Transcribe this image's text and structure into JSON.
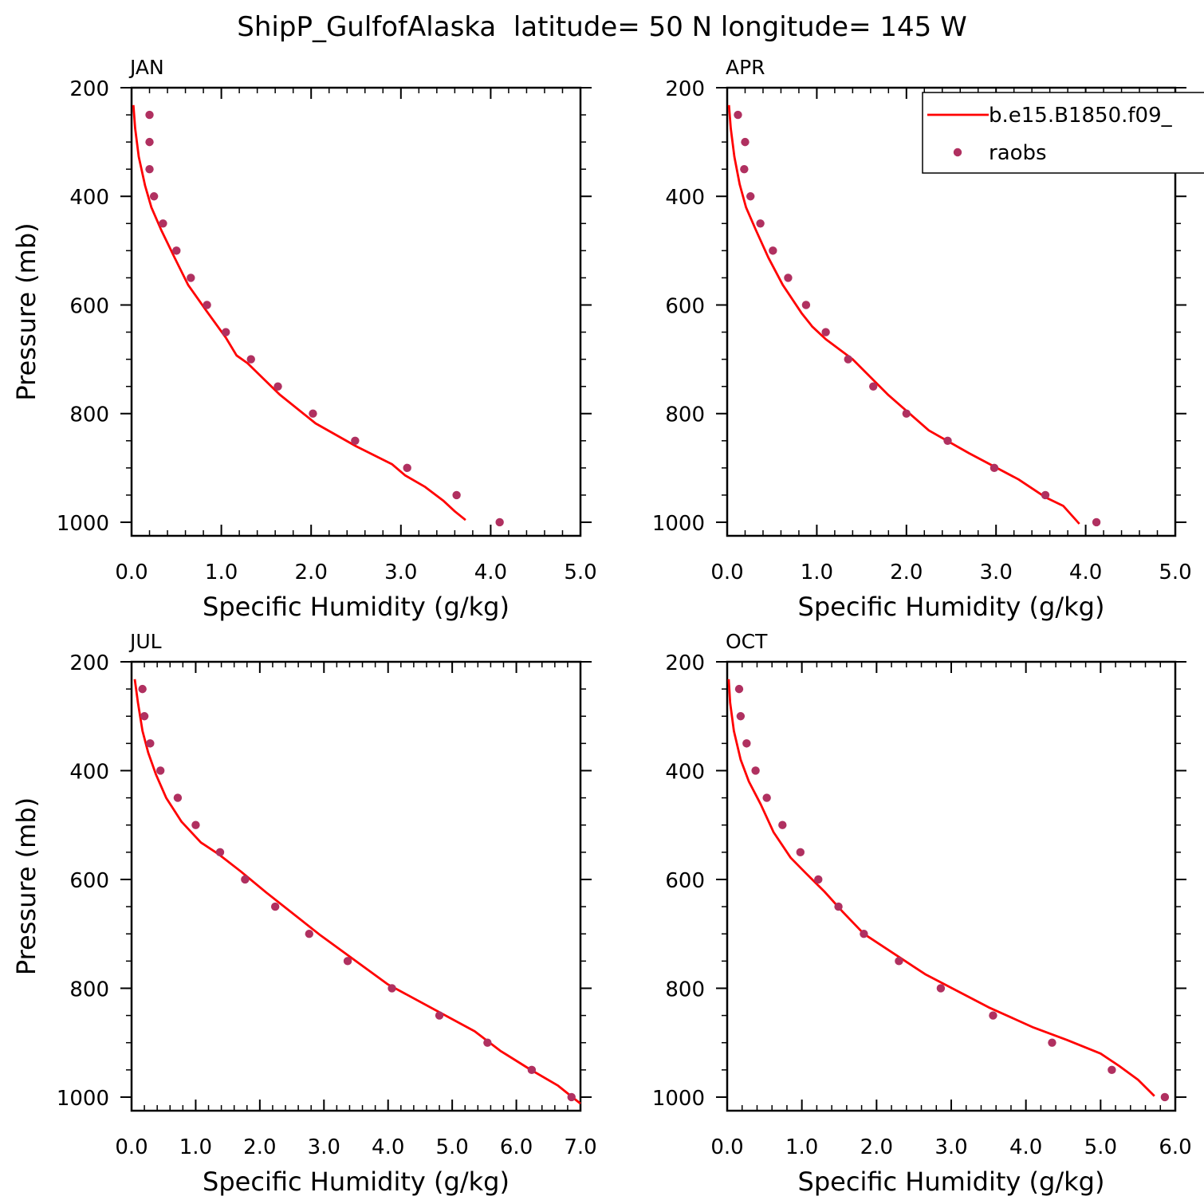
{
  "figure": {
    "title": "ShipP_GulfofAlaska  latitude= 50 N longitude= 145 W"
  },
  "legend": {
    "placement": "top-right of APR panel",
    "entries": [
      {
        "label": "b.e15.B1850.f09_",
        "kind": "line",
        "color": "#ff0000"
      },
      {
        "label": "raobs",
        "kind": "marker",
        "color": "#b03060"
      }
    ]
  },
  "colors": {
    "model_line": "#ff0000",
    "raobs_marker": "#b03060"
  },
  "chart_data": [
    {
      "type": "line",
      "panel_label": "JAN",
      "xlabel": "Specific Humidity (g/kg)",
      "ylabel": "Pressure (mb)",
      "xlim": [
        0,
        5
      ],
      "ylim": [
        200,
        1025
      ],
      "y_inverted": true,
      "xticks": [
        "0.0",
        "1.0",
        "2.0",
        "3.0",
        "4.0",
        "5.0"
      ],
      "yticks": [
        "200",
        "400",
        "600",
        "800",
        "1000"
      ],
      "series": [
        {
          "name": "b.e15.B1850.f09_",
          "kind": "line",
          "x": [
            0.02,
            0.04,
            0.08,
            0.15,
            0.22,
            0.33,
            0.48,
            0.63,
            0.83,
            1.05,
            1.17,
            1.29,
            1.65,
            2.05,
            2.5,
            2.9,
            3.05,
            3.27,
            3.47,
            3.6,
            3.72
          ],
          "y": [
            232,
            275,
            327,
            380,
            420,
            462,
            513,
            563,
            610,
            660,
            693,
            707,
            765,
            818,
            860,
            893,
            914,
            935,
            960,
            980,
            996
          ]
        },
        {
          "name": "raobs",
          "kind": "scatter",
          "x": [
            0.2,
            0.2,
            0.2,
            0.25,
            0.35,
            0.5,
            0.66,
            0.84,
            1.05,
            1.33,
            1.63,
            2.02,
            2.49,
            3.07,
            3.62,
            4.1
          ],
          "y": [
            250,
            300,
            350,
            400,
            450,
            500,
            550,
            600,
            650,
            700,
            750,
            800,
            850,
            900,
            950,
            1000
          ]
        }
      ]
    },
    {
      "type": "line",
      "panel_label": "APR",
      "xlabel": "Specific Humidity (g/kg)",
      "ylabel": "",
      "xlim": [
        0,
        5
      ],
      "ylim": [
        200,
        1025
      ],
      "y_inverted": true,
      "xticks": [
        "0.0",
        "1.0",
        "2.0",
        "3.0",
        "4.0",
        "5.0"
      ],
      "yticks": [
        "200",
        "400",
        "600",
        "800",
        "1000"
      ],
      "series": [
        {
          "name": "b.e15.B1850.f09_",
          "kind": "line",
          "x": [
            0.02,
            0.04,
            0.08,
            0.14,
            0.21,
            0.32,
            0.46,
            0.62,
            0.83,
            0.95,
            1.1,
            1.4,
            1.8,
            2.25,
            2.7,
            3.25,
            3.55,
            3.75,
            3.93
          ],
          "y": [
            232,
            275,
            327,
            378,
            420,
            462,
            513,
            563,
            615,
            640,
            663,
            700,
            766,
            831,
            873,
            921,
            954,
            970,
            1003
          ]
        },
        {
          "name": "raobs",
          "kind": "scatter",
          "x": [
            0.12,
            0.2,
            0.19,
            0.26,
            0.37,
            0.51,
            0.68,
            0.88,
            1.1,
            1.35,
            1.63,
            2.0,
            2.46,
            2.98,
            3.55,
            4.12
          ],
          "y": [
            250,
            300,
            350,
            400,
            450,
            500,
            550,
            600,
            650,
            700,
            750,
            800,
            850,
            900,
            950,
            1000
          ]
        }
      ]
    },
    {
      "type": "line",
      "panel_label": "JUL",
      "xlabel": "Specific Humidity (g/kg)",
      "ylabel": "Pressure (mb)",
      "xlim": [
        0,
        7
      ],
      "ylim": [
        200,
        1025
      ],
      "y_inverted": true,
      "xticks": [
        "0.0",
        "1.0",
        "2.0",
        "3.0",
        "4.0",
        "5.0",
        "6.0",
        "7.0"
      ],
      "yticks": [
        "200",
        "400",
        "600",
        "800",
        "1000"
      ],
      "series": [
        {
          "name": "b.e15.B1850.f09_",
          "kind": "line",
          "x": [
            0.05,
            0.1,
            0.17,
            0.26,
            0.38,
            0.54,
            0.78,
            1.08,
            1.35,
            1.7,
            2.1,
            2.95,
            4.0,
            5.35,
            5.75,
            6.2,
            6.65,
            7.0
          ],
          "y": [
            232,
            275,
            327,
            367,
            407,
            450,
            494,
            532,
            553,
            585,
            624,
            703,
            793,
            879,
            915,
            948,
            979,
            1012
          ]
        },
        {
          "name": "raobs",
          "kind": "scatter",
          "x": [
            0.17,
            0.2,
            0.29,
            0.45,
            0.72,
            1.0,
            1.38,
            1.77,
            2.24,
            2.77,
            3.37,
            4.06,
            4.8,
            5.55,
            6.24,
            6.86
          ],
          "y": [
            250,
            300,
            350,
            400,
            450,
            500,
            550,
            600,
            650,
            700,
            750,
            800,
            850,
            900,
            950,
            1000
          ]
        }
      ]
    },
    {
      "type": "line",
      "panel_label": "OCT",
      "xlabel": "Specific Humidity (g/kg)",
      "ylabel": "",
      "xlim": [
        0,
        6
      ],
      "ylim": [
        200,
        1025
      ],
      "y_inverted": true,
      "xticks": [
        "0.0",
        "1.0",
        "2.0",
        "3.0",
        "4.0",
        "5.0",
        "6.0"
      ],
      "yticks": [
        "200",
        "400",
        "600",
        "800",
        "1000"
      ],
      "series": [
        {
          "name": "b.e15.B1850.f09_",
          "kind": "line",
          "x": [
            0.02,
            0.04,
            0.09,
            0.18,
            0.29,
            0.45,
            0.62,
            0.85,
            1.05,
            1.3,
            1.55,
            1.83,
            2.65,
            3.5,
            4.1,
            4.55,
            5.0,
            5.25,
            5.5,
            5.72
          ],
          "y": [
            232,
            275,
            327,
            380,
            420,
            462,
            513,
            560,
            588,
            622,
            660,
            700,
            774,
            835,
            872,
            895,
            920,
            943,
            968,
            998
          ]
        },
        {
          "name": "raobs",
          "kind": "scatter",
          "x": [
            0.16,
            0.18,
            0.26,
            0.38,
            0.53,
            0.74,
            0.98,
            1.22,
            1.49,
            1.83,
            2.3,
            2.86,
            3.56,
            4.35,
            5.15,
            5.86
          ],
          "y": [
            250,
            300,
            350,
            400,
            450,
            500,
            550,
            600,
            650,
            700,
            750,
            800,
            850,
            900,
            950,
            1000
          ]
        }
      ]
    }
  ]
}
